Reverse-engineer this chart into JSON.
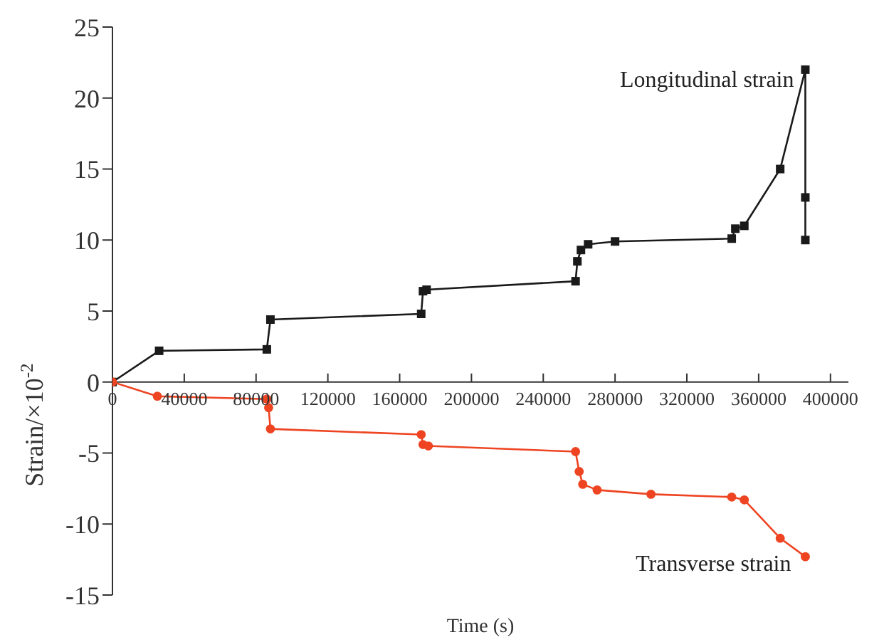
{
  "chart_data": {
    "type": "line",
    "xlabel": "Time (s)",
    "ylabel": "Strain/×10$^{-2}$",
    "xlim": [
      0,
      410000
    ],
    "xticks": [
      0,
      40000,
      80000,
      120000,
      160000,
      200000,
      240000,
      280000,
      320000,
      360000,
      400000
    ],
    "ylim": [
      -15,
      25
    ],
    "yticks": [
      -15,
      -10,
      -5,
      0,
      5,
      10,
      15,
      20,
      25
    ],
    "grid": false,
    "legend": false,
    "series": [
      {
        "name": "Longitudinal strain",
        "color": "#1a1a1a",
        "marker": "square",
        "x": [
          0,
          26000,
          86000,
          88000,
          172000,
          173000,
          175000,
          258000,
          259000,
          261000,
          265000,
          280000,
          345000,
          347000,
          352000,
          372000,
          386000,
          386000,
          386000
        ],
        "values": [
          0,
          2.2,
          2.3,
          4.4,
          4.8,
          6.4,
          6.5,
          7.1,
          8.5,
          9.3,
          9.7,
          9.9,
          10.1,
          10.8,
          11,
          15,
          22,
          13,
          10
        ]
      },
      {
        "name": "Transverse strain",
        "color": "#ee4422",
        "marker": "circle",
        "x": [
          0,
          25000,
          86000,
          87000,
          88000,
          172000,
          173000,
          176000,
          258000,
          260000,
          262000,
          270000,
          300000,
          345000,
          352000,
          372000,
          386000
        ],
        "values": [
          0,
          -1,
          -1.2,
          -1.8,
          -3.3,
          -3.7,
          -4.4,
          -4.5,
          -4.9,
          -6.3,
          -7.2,
          -7.6,
          -7.9,
          -8.1,
          -8.3,
          -11,
          -12.3
        ]
      }
    ]
  }
}
